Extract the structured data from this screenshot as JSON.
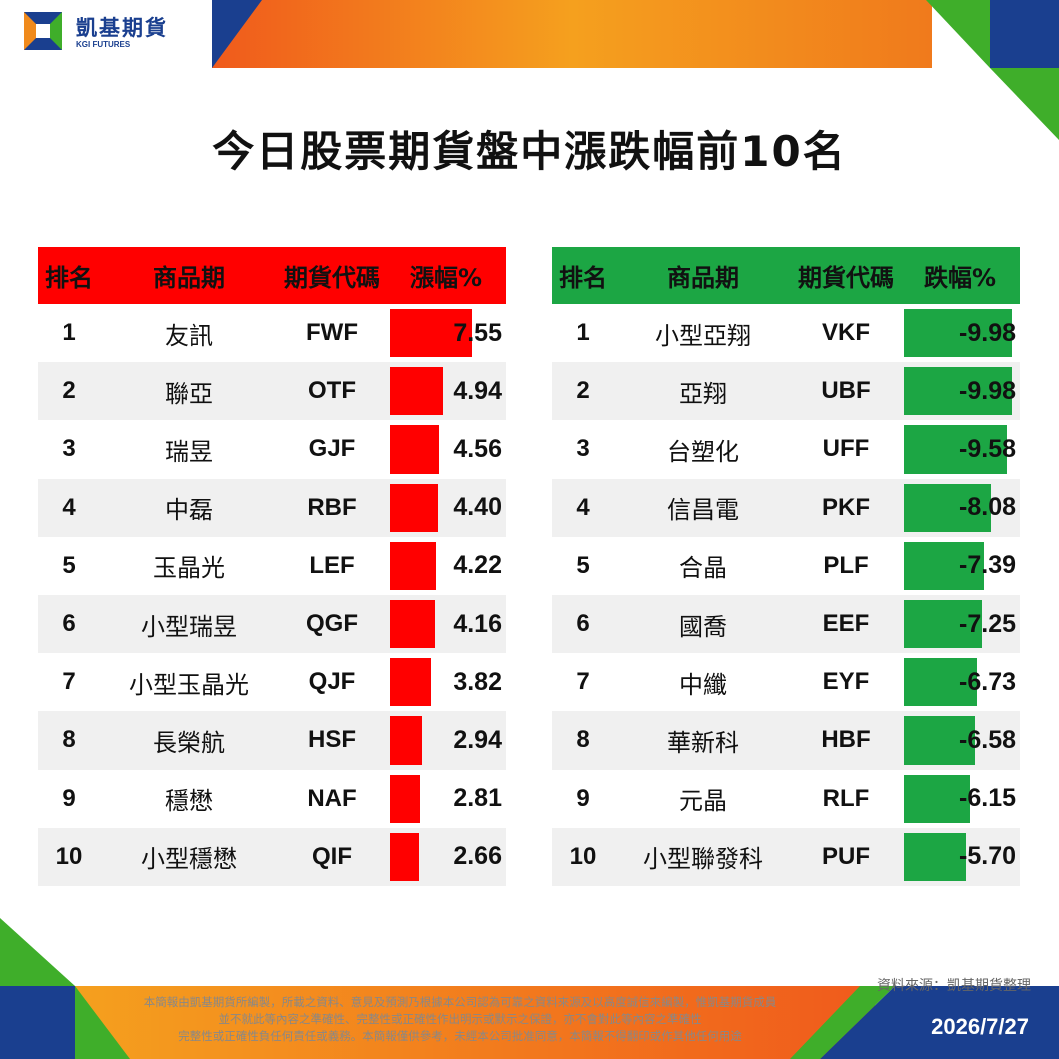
{
  "brand": {
    "name_cn": "凱基期貨",
    "name_en": "KGI FUTURES"
  },
  "title": "今日股票期貨盤中漲跌幅前10名",
  "gainers": {
    "headers": {
      "rank": "排名",
      "name": "商品期",
      "code": "期貨代碼",
      "pct": "漲幅%"
    },
    "rows": [
      {
        "rank": "1",
        "name": "友訊",
        "code": "FWF",
        "pct": "7.55",
        "value": 7.55
      },
      {
        "rank": "2",
        "name": "聯亞",
        "code": "OTF",
        "pct": "4.94",
        "value": 4.94
      },
      {
        "rank": "3",
        "name": "瑞昱",
        "code": "GJF",
        "pct": "4.56",
        "value": 4.56
      },
      {
        "rank": "4",
        "name": "中磊",
        "code": "RBF",
        "pct": "4.40",
        "value": 4.4
      },
      {
        "rank": "5",
        "name": "玉晶光",
        "code": "LEF",
        "pct": "4.22",
        "value": 4.22
      },
      {
        "rank": "6",
        "name": "小型瑞昱",
        "code": "QGF",
        "pct": "4.16",
        "value": 4.16
      },
      {
        "rank": "7",
        "name": "小型玉晶光",
        "code": "QJF",
        "pct": "3.82",
        "value": 3.82
      },
      {
        "rank": "8",
        "name": "長榮航",
        "code": "HSF",
        "pct": "2.94",
        "value": 2.94
      },
      {
        "rank": "9",
        "name": "穩懋",
        "code": "NAF",
        "pct": "2.81",
        "value": 2.81
      },
      {
        "rank": "10",
        "name": "小型穩懋",
        "code": "QIF",
        "pct": "2.66",
        "value": 2.66
      }
    ]
  },
  "losers": {
    "headers": {
      "rank": "排名",
      "name": "商品期",
      "code": "期貨代碼",
      "pct": "跌幅%"
    },
    "rows": [
      {
        "rank": "1",
        "name": "小型亞翔",
        "code": "VKF",
        "pct": "-9.98",
        "value": -9.98
      },
      {
        "rank": "2",
        "name": "亞翔",
        "code": "UBF",
        "pct": "-9.98",
        "value": -9.98
      },
      {
        "rank": "3",
        "name": "台塑化",
        "code": "UFF",
        "pct": "-9.58",
        "value": -9.58
      },
      {
        "rank": "4",
        "name": "信昌電",
        "code": "PKF",
        "pct": "-8.08",
        "value": -8.08
      },
      {
        "rank": "5",
        "name": "合晶",
        "code": "PLF",
        "pct": "-7.39",
        "value": -7.39
      },
      {
        "rank": "6",
        "name": "國喬",
        "code": "EEF",
        "pct": "-7.25",
        "value": -7.25
      },
      {
        "rank": "7",
        "name": "中纖",
        "code": "EYF",
        "pct": "-6.73",
        "value": -6.73
      },
      {
        "rank": "8",
        "name": "華新科",
        "code": "HBF",
        "pct": "-6.58",
        "value": -6.58
      },
      {
        "rank": "9",
        "name": "元晶",
        "code": "RLF",
        "pct": "-6.15",
        "value": -6.15
      },
      {
        "rank": "10",
        "name": "小型聯發科",
        "code": "PUF",
        "pct": "-5.70",
        "value": -5.7
      }
    ]
  },
  "footer": {
    "source": "資料來源：凱基期貨整理",
    "disclaimer": [
      "本簡報由凱基期貨所編製，所載之資料、意見及預測乃根據本公司認為可靠之資料來源及以高度誠信來編製，惟凱基期貨成員",
      "並不就此等內容之準確性、完整性或正確性作出明示或默示之保證，亦不會對此等內容之準確性",
      "完整性或正確性負任何責任或義務。本簡報僅供參考，未經本公司批准同意，本簡報不得翻印或作其他任何用途"
    ],
    "date": "2026/7/27"
  },
  "colors": {
    "gain": "#ff0000",
    "loss": "#1ca644",
    "brand_blue": "#1a3f8f",
    "brand_orange": "#f08a1c"
  }
}
